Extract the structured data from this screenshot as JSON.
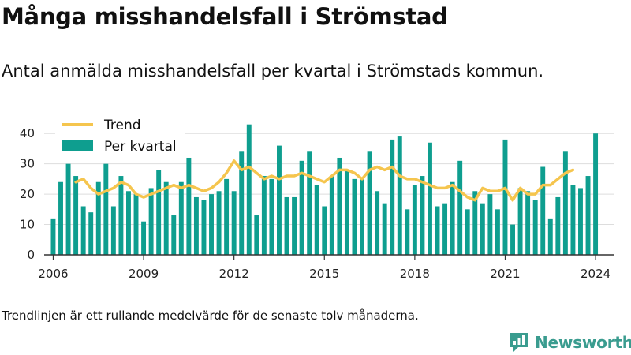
{
  "title": "Många misshandelsfall i Strömstad",
  "subtitle": "Antal anmälda misshandelsfall per kvartal i Strömstads kommun.",
  "footnote": "Trendlinjen är ett rullande medelvärde för de senaste tolv månaderna.",
  "brand": {
    "name": "Newsworthy",
    "icon": "newsworthy-logo-icon"
  },
  "colors": {
    "bars": "#0e9e8f",
    "trend": "#f5c54e",
    "axis": "#333333",
    "grid": "#dddddd"
  },
  "chart_data": {
    "type": "bar",
    "ylim": [
      0,
      45
    ],
    "yticks": [
      0,
      10,
      20,
      30,
      40
    ],
    "xlim": [
      2005.7,
      2024.6
    ],
    "xticks": [
      2006,
      2009,
      2012,
      2015,
      2018,
      2021,
      2024
    ],
    "grid": true,
    "legend": {
      "position": "top-left",
      "entries": [
        "Trend",
        "Per kvartal"
      ]
    },
    "series": [
      {
        "name": "Per kvartal",
        "type": "bar",
        "start": 2006.0,
        "step": 0.25,
        "values": [
          12,
          24,
          30,
          26,
          16,
          14,
          24,
          30,
          16,
          26,
          21,
          20,
          11,
          22,
          28,
          24,
          13,
          24,
          32,
          19,
          18,
          20,
          21,
          25,
          21,
          34,
          43,
          13,
          26,
          25,
          36,
          19,
          19,
          31,
          34,
          23,
          16,
          26,
          32,
          28,
          25,
          25,
          34,
          21,
          17,
          38,
          39,
          15,
          23,
          26,
          37,
          16,
          17,
          24,
          31,
          15,
          21,
          17,
          20,
          15,
          38,
          10,
          22,
          21,
          18,
          29,
          12,
          19,
          34,
          23,
          22,
          26,
          40
        ]
      },
      {
        "name": "Trend",
        "type": "line",
        "start": 2006.75,
        "step": 0.25,
        "values": [
          24,
          25,
          22,
          20,
          21,
          22,
          24,
          23,
          20,
          19,
          20,
          21,
          22,
          23,
          22,
          23,
          22,
          21,
          22,
          24,
          27,
          31,
          28,
          29,
          27,
          25,
          26,
          25,
          26,
          26,
          27,
          26,
          25,
          24,
          26,
          28,
          28,
          27,
          25,
          28,
          29,
          28,
          29,
          26,
          25,
          25,
          24,
          23,
          22,
          22,
          23,
          21,
          19,
          18,
          22,
          21,
          21,
          22,
          18,
          22,
          20,
          20,
          23,
          23,
          25,
          27,
          28
        ]
      }
    ]
  }
}
